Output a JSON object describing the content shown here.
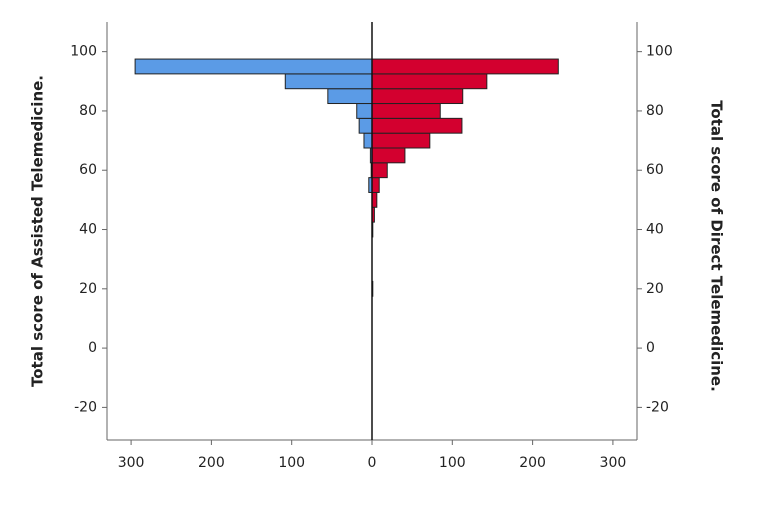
{
  "chart_data": {
    "type": "histogram",
    "orientation": "horizontal",
    "y_label": "Total score of Assisted Telemedicine.",
    "y2_label": "Total score of Direct Telemedicine.",
    "bins": [
      17.5,
      22.5,
      27.5,
      32.5,
      37.5,
      42.5,
      47.5,
      52.5,
      57.5,
      62.5,
      67.5,
      72.5,
      77.5,
      82.5,
      87.5,
      92.5,
      97.5
    ],
    "series": [
      {
        "color": "#5b9be6",
        "side": "left",
        "values": [
          0,
          0,
          0,
          0,
          0,
          0,
          0,
          4,
          1,
          2,
          10,
          16,
          19,
          55,
          108,
          295
        ]
      },
      {
        "color": "#d3002f",
        "side": "right",
        "axis": "y2",
        "values": [
          1,
          0,
          0,
          0,
          1,
          3,
          6,
          9,
          19,
          41,
          72,
          112,
          85,
          113,
          143,
          232
        ]
      }
    ],
    "xlim": [
      -330,
      330
    ],
    "xticks": [
      {
        "value": -300,
        "label": "300"
      },
      {
        "value": -200,
        "label": "200"
      },
      {
        "value": -100,
        "label": "100"
      },
      0,
      100,
      200,
      300
    ],
    "ylim": [
      -31,
      110
    ],
    "yticks": [
      -20,
      0,
      20,
      40,
      60,
      80,
      100
    ],
    "y2lim": [
      -31,
      110
    ],
    "y2ticks": [
      -20,
      0,
      20,
      40,
      60,
      80,
      100
    ]
  }
}
